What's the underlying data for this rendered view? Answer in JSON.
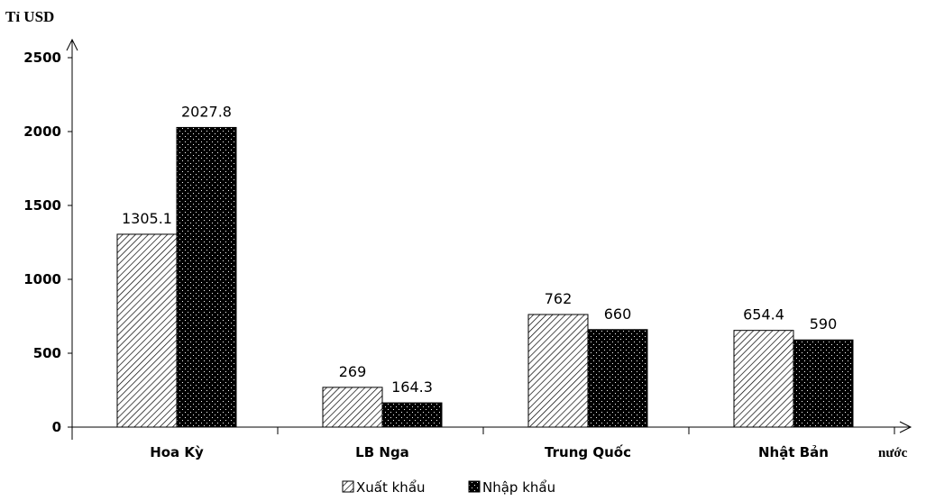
{
  "chart_data": {
    "type": "bar",
    "ylabel": "Tỉ USD",
    "xlabel": "nước",
    "categories": [
      "Hoa Kỳ",
      "LB Nga",
      "Trung Quốc",
      "Nhật Bản"
    ],
    "series": [
      {
        "name": "Xuất khẩu",
        "values": [
          1305.1,
          269,
          762,
          654.4
        ],
        "pattern": "diagonal-hatch"
      },
      {
        "name": "Nhập khẩu",
        "values": [
          2027.8,
          164.3,
          660,
          590
        ],
        "pattern": "black-dotted"
      }
    ],
    "value_labels": [
      [
        "1305.1",
        "269",
        "762",
        "654.4"
      ],
      [
        "2027.8",
        "164.3",
        "660",
        "590"
      ]
    ],
    "ylim": [
      0,
      2500
    ],
    "yticks": [
      0,
      500,
      1000,
      1500,
      2000,
      2500
    ],
    "grid": false,
    "legend_position": "bottom-center",
    "colors": {
      "axis": "#000000",
      "bar_fill_dark": "#000000",
      "bar_fill_light": "#ffffff"
    }
  }
}
